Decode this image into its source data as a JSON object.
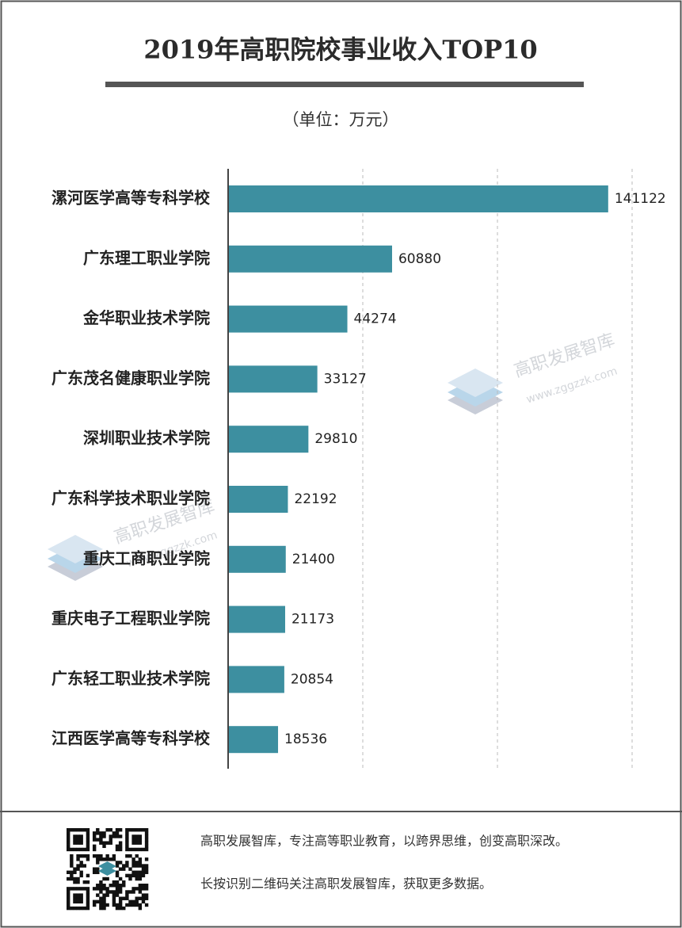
{
  "chart_data": {
    "type": "bar",
    "orientation": "horizontal",
    "title": "2019年高职院校事业收入TOP10",
    "subtitle": "（单位：万元）",
    "categories": [
      "漯河医学高等专科学校",
      "广东理工职业学院",
      "金华职业技术学院",
      "广东茂名健康职业学院",
      "深圳职业技术学院",
      "广东科学技术职业学院",
      "重庆工商职业学院",
      "重庆电子工程职业学院",
      "广东轻工职业技术学院",
      "江西医学高等专科学校"
    ],
    "values": [
      141122,
      60880,
      44274,
      33127,
      29810,
      22192,
      21400,
      21173,
      20854,
      18536
    ],
    "color": "#3d8fa0",
    "xlim": [
      0,
      150000
    ],
    "xticks": [
      50000,
      100000,
      150000
    ],
    "show_tick_labels": false,
    "grid": true
  },
  "watermark": {
    "name": "高职发展智库",
    "url": "www.zggzzk.com"
  },
  "footer": {
    "lines": [
      "高职发展智库，专注高等职业教育，以跨界思维，创变高职深改。",
      "长按识别二维码关注高职发展智库，获取更多数据。"
    ]
  }
}
